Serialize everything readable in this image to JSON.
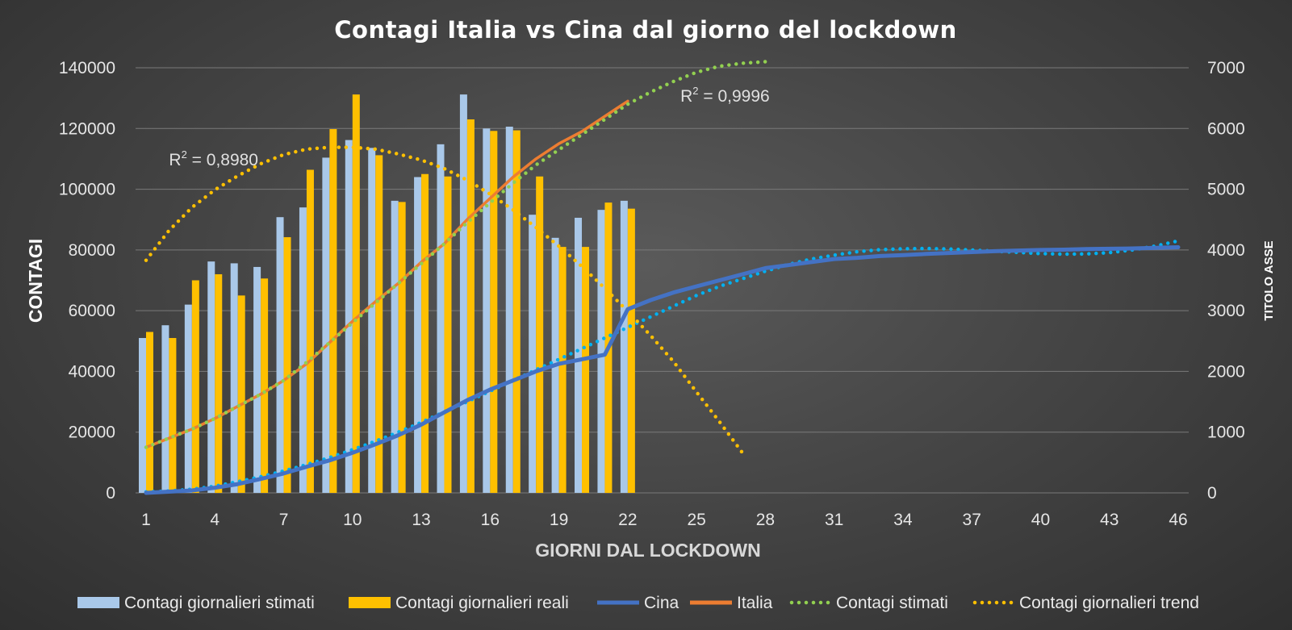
{
  "chart_data": {
    "type": "bar",
    "title": "Contagi Italia vs Cina dal giorno del lockdown",
    "xlabel": "GIORNI DAL LOCKDOWN",
    "ylabel": "CONTAGI",
    "y2label": "TITOLO ASSE",
    "x_range": [
      1,
      46
    ],
    "x_ticks": [
      1,
      4,
      7,
      10,
      13,
      16,
      19,
      22,
      25,
      28,
      31,
      34,
      37,
      40,
      43,
      46
    ],
    "ylim": [
      0,
      140000
    ],
    "y_ticks": [
      0,
      20000,
      40000,
      60000,
      80000,
      100000,
      120000,
      140000
    ],
    "y2lim": [
      0,
      7000
    ],
    "y2_ticks": [
      0,
      1000,
      2000,
      3000,
      4000,
      5000,
      6000,
      7000
    ],
    "grid": true,
    "legend_position": "bottom",
    "annotations": [
      {
        "text": "R",
        "sup": "2",
        "rest": " = 0,8980",
        "anchor_day": 2,
        "anchor_y": 110000,
        "series": "Contagi giornalieri trend"
      },
      {
        "text": "R",
        "sup": "2",
        "rest": " = 0,9996",
        "anchor_day": 25,
        "anchor_y": 131000,
        "series": "Contagi stimati"
      }
    ],
    "series": [
      {
        "name": "Contagi giornalieri stimati",
        "kind": "bar",
        "axis": "y2",
        "color": "#a9c8e9",
        "x": [
          1,
          2,
          3,
          4,
          5,
          6,
          7,
          8,
          9,
          10,
          11,
          12,
          13,
          14,
          15,
          16,
          17,
          18,
          19,
          20,
          21,
          22
        ],
        "values": [
          2550,
          2760,
          3100,
          3810,
          3780,
          3720,
          4540,
          4700,
          5520,
          5810,
          5680,
          4810,
          5200,
          5740,
          6560,
          6000,
          6030,
          4580,
          4200,
          4530,
          4660,
          4810
        ]
      },
      {
        "name": "Contagi giornalieri reali",
        "kind": "bar",
        "axis": "y2",
        "color": "#ffc000",
        "x": [
          1,
          2,
          3,
          4,
          5,
          6,
          7,
          8,
          9,
          10,
          11,
          12,
          13,
          14,
          15,
          16,
          17,
          18,
          19,
          20,
          21,
          22
        ],
        "values": [
          2650,
          2550,
          3500,
          3600,
          3250,
          3530,
          4210,
          5320,
          5990,
          6560,
          5560,
          4790,
          5250,
          5210,
          6150,
          5960,
          5970,
          5210,
          4050,
          4050,
          4780,
          4680
        ]
      },
      {
        "name": "Cina",
        "kind": "line",
        "axis": "y",
        "color": "#4472c4",
        "x": [
          1,
          2,
          3,
          4,
          5,
          6,
          7,
          8,
          9,
          10,
          11,
          12,
          13,
          14,
          15,
          16,
          17,
          18,
          19,
          20,
          21,
          22,
          23,
          24,
          25,
          26,
          27,
          28,
          29,
          30,
          31,
          32,
          33,
          34,
          35,
          36,
          37,
          38,
          39,
          40,
          41,
          42,
          43,
          44,
          45,
          46
        ],
        "values": [
          0,
          400,
          800,
          1700,
          2900,
          4600,
          6400,
          8600,
          10700,
          13200,
          16000,
          19000,
          22500,
          26500,
          30500,
          34000,
          37000,
          40000,
          42500,
          44000,
          45500,
          60500,
          63500,
          66000,
          68000,
          70000,
          72000,
          74000,
          75000,
          76000,
          77000,
          77400,
          78000,
          78300,
          78700,
          79000,
          79300,
          79600,
          79800,
          80000,
          80100,
          80300,
          80400,
          80500,
          80700,
          80900
        ]
      },
      {
        "name": "Italia",
        "kind": "line",
        "axis": "y",
        "color": "#ed7d31",
        "x": [
          1,
          2,
          3,
          4,
          5,
          6,
          7,
          8,
          9,
          10,
          11,
          12,
          13,
          14,
          15,
          16,
          17,
          18,
          19,
          20,
          21,
          22
        ],
        "values": [
          15000,
          18000,
          21000,
          24500,
          28500,
          32500,
          37000,
          42500,
          49500,
          56500,
          63000,
          69000,
          76000,
          82000,
          90000,
          97000,
          104000,
          110000,
          115000,
          119000,
          124000,
          129000
        ]
      },
      {
        "name": "Contagi stimati",
        "kind": "trend",
        "axis": "y",
        "color": "#92d050",
        "x": [
          1,
          2,
          3,
          4,
          5,
          6,
          7,
          8,
          9,
          10,
          11,
          12,
          13,
          14,
          15,
          16,
          17,
          18,
          19,
          20,
          21,
          22,
          23,
          24,
          25,
          26,
          27,
          28
        ],
        "values": [
          15000,
          18000,
          21000,
          24500,
          28500,
          32500,
          37000,
          43000,
          49500,
          56000,
          62500,
          69000,
          75500,
          82000,
          89000,
          95500,
          102000,
          108000,
          113000,
          118000,
          123000,
          128000,
          132000,
          135500,
          138500,
          140500,
          141500,
          142000
        ]
      },
      {
        "name": "Contagi giornalieri trend",
        "kind": "trend",
        "axis": "y2",
        "color": "#ffc000",
        "x": [
          1,
          2,
          3,
          4,
          5,
          6,
          7,
          8,
          9,
          10,
          11,
          12,
          13,
          14,
          15,
          16,
          17,
          18,
          19,
          20,
          21,
          22,
          23,
          24,
          25,
          26,
          27
        ],
        "values": [
          3830,
          4320,
          4700,
          4990,
          5220,
          5420,
          5570,
          5660,
          5690,
          5690,
          5660,
          5580,
          5480,
          5340,
          5150,
          4920,
          4660,
          4370,
          4060,
          3730,
          3370,
          2990,
          2590,
          2160,
          1660,
          1170,
          660
        ]
      },
      {
        "name": "Cina trend",
        "kind": "trend-unlisted",
        "axis": "y",
        "color": "#00b0f0",
        "x": [
          1,
          2,
          3,
          4,
          5,
          6,
          7,
          8,
          9,
          10,
          11,
          12,
          13,
          14,
          15,
          16,
          17,
          18,
          19,
          20,
          21,
          22,
          23,
          24,
          25,
          26,
          27,
          28,
          29,
          30,
          31,
          32,
          33,
          34,
          35,
          36,
          37,
          38,
          39,
          40,
          41,
          42,
          43,
          44,
          45,
          46
        ],
        "values": [
          300,
          600,
          1200,
          2200,
          3700,
          5300,
          7200,
          9300,
          11600,
          14200,
          17000,
          20000,
          23200,
          26700,
          30000,
          33500,
          37000,
          40500,
          44000,
          47500,
          51000,
          54500,
          58000,
          61500,
          65000,
          68000,
          70500,
          73000,
          75200,
          77000,
          78300,
          79400,
          80100,
          80400,
          80500,
          80300,
          80000,
          79600,
          79200,
          78800,
          78600,
          78700,
          79100,
          80000,
          81300,
          83000
        ]
      }
    ],
    "legend": [
      {
        "label": "Contagi giornalieri stimati",
        "swatch": "bar",
        "color": "#a9c8e9"
      },
      {
        "label": "Contagi giornalieri reali",
        "swatch": "bar",
        "color": "#ffc000"
      },
      {
        "label": "Cina",
        "swatch": "line",
        "color": "#4472c4"
      },
      {
        "label": "Italia",
        "swatch": "line",
        "color": "#ed7d31"
      },
      {
        "label": "Contagi stimati",
        "swatch": "dots",
        "color": "#92d050"
      },
      {
        "label": "Contagi giornalieri trend",
        "swatch": "dots",
        "color": "#ffc000"
      }
    ]
  }
}
